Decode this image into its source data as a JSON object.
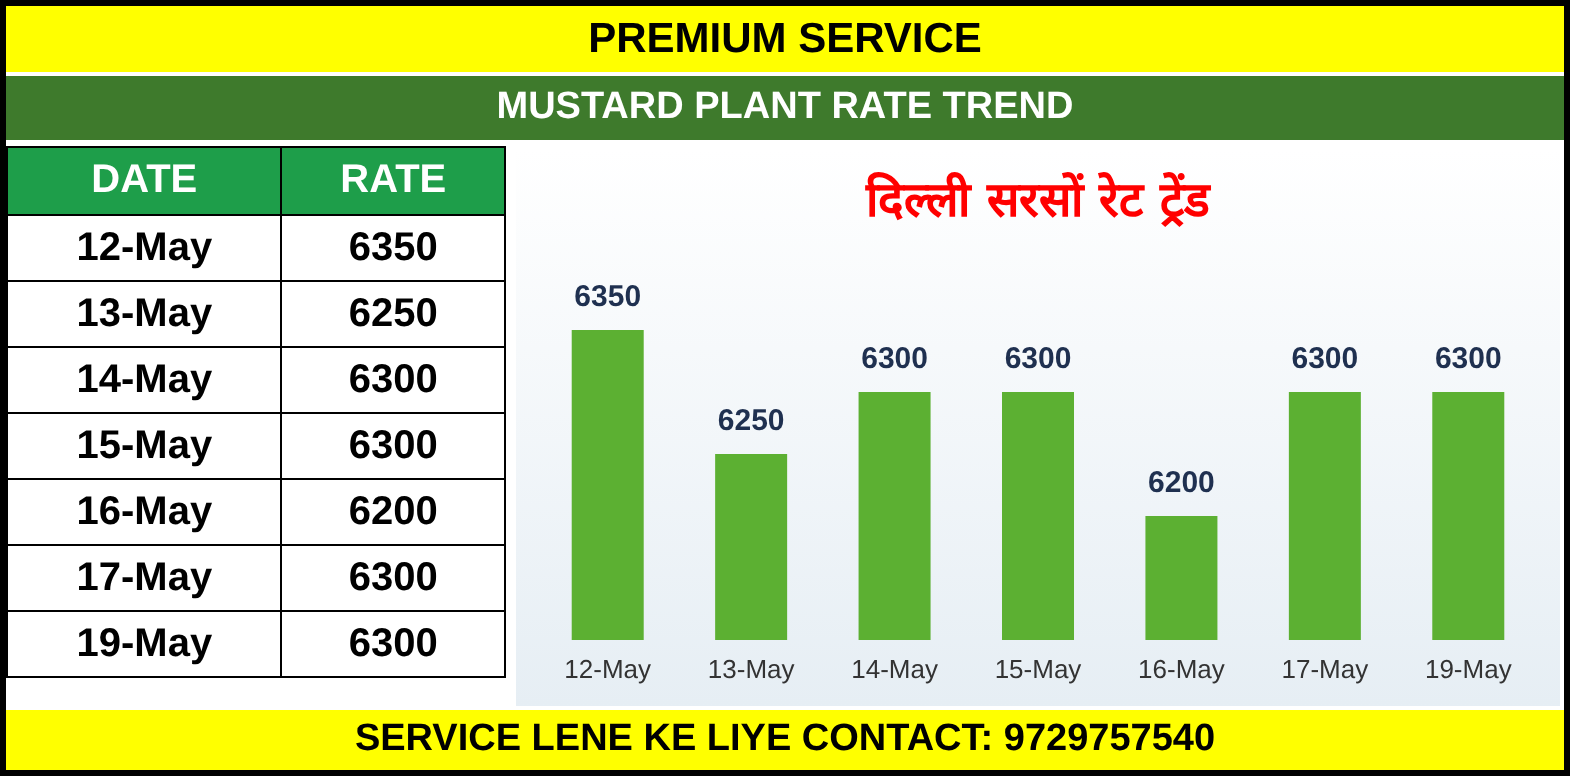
{
  "chart_data": [
    {
      "type": "other",
      "annotations": [
        "DATE",
        "RATE",
        "12-May",
        "6350",
        "13-May",
        "6250",
        "14-May",
        "6300",
        "15-May",
        "6300",
        "16-May",
        "6200",
        "17-May",
        "6300",
        "19-May",
        "6300"
      ]
    },
    {
      "type": "bar",
      "title": "PREMIUM SERVICE",
      "subtitle": "MUSTARD PLANT RATE TREND",
      "annotations": [
        "दिल्ली सरसों रेट ट्रेंड",
        "SERVICE LENE KE LIYE CONTACT: 9729757540"
      ],
      "categories": [
        "12-May",
        "13-May",
        "14-May",
        "15-May",
        "16-May",
        "17-May",
        "19-May"
      ],
      "values": [
        6350,
        6250,
        6300,
        6300,
        6200,
        6300,
        6300
      ],
      "color": "#5cb032",
      "ylim": [
        6100,
        6350
      ],
      "tick_labels": "x",
      "grid": false,
      "data_labels": true
    }
  ]
}
